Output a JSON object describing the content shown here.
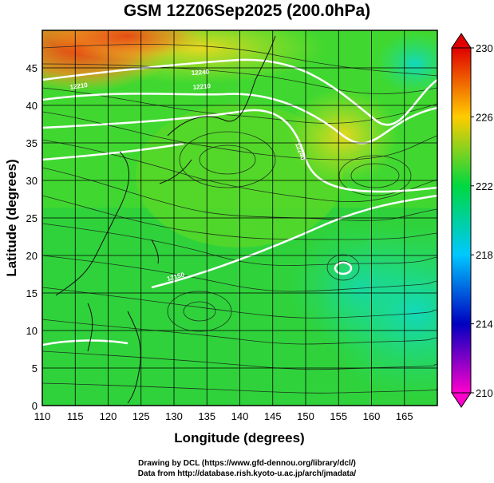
{
  "title": "GSM 12Z06Sep2025 (200.0hPa)",
  "map": {
    "xlabel": "Longitude (degrees)",
    "ylabel": "Latitude  (degrees)",
    "x_range": [
      110,
      170
    ],
    "y_range": [
      0,
      50
    ],
    "x_ticks": [
      "110",
      "115",
      "120",
      "125",
      "130",
      "135",
      "140",
      "145",
      "150",
      "155",
      "160",
      "165"
    ],
    "y_ticks": [
      "0",
      "5",
      "10",
      "15",
      "20",
      "25",
      "30",
      "35",
      "40",
      "45"
    ],
    "grid": true,
    "colorbar": {
      "ticks": [
        "230",
        "226",
        "222",
        "218",
        "214",
        "210"
      ],
      "range": [
        210,
        230
      ],
      "colors": [
        "#ff00cc",
        "#0000c0",
        "#00c8ff",
        "#00e060",
        "#ffcc00",
        "#e00000"
      ]
    },
    "contour_labels": [
      "12210",
      "12210",
      "12240",
      "12240",
      "12150"
    ]
  },
  "credits": {
    "line1": "Drawing by DCL (https://www.gfd-dennou.org/library/dcl/)",
    "line2": "Data from http://database.rish.kyoto-u.ac.jp/arch/jmadata/"
  }
}
